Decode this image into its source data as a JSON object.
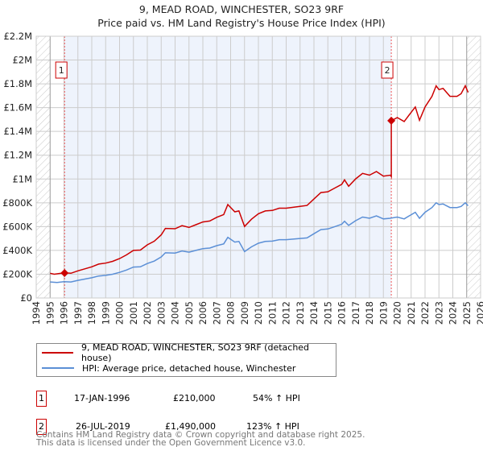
{
  "title": "9, MEAD ROAD, WINCHESTER, SO23 9RF",
  "subtitle": "Price paid vs. HM Land Registry's House Price Index (HPI)",
  "chart_data": {
    "type": "line",
    "title": "9, MEAD ROAD, WINCHESTER, SO23 9RF",
    "subtitle": "Price paid vs. HM Land Registry's House Price Index (HPI)",
    "xlim": [
      1994,
      2026
    ],
    "ylim": [
      0,
      2200000
    ],
    "y_ticks": [
      0,
      200000,
      400000,
      600000,
      800000,
      1000000,
      1200000,
      1400000,
      1600000,
      1800000,
      2000000,
      2200000
    ],
    "y_tick_labels": [
      "£0",
      "£200K",
      "£400K",
      "£600K",
      "£800K",
      "£1M",
      "£1.2M",
      "£1.4M",
      "£1.6M",
      "£1.8M",
      "£2M",
      "£2.2M"
    ],
    "x_tick_labels": [
      "1994",
      "1995",
      "1996",
      "1997",
      "1998",
      "1999",
      "2000",
      "2001",
      "2002",
      "2003",
      "2004",
      "2005",
      "2006",
      "2007",
      "2008",
      "2009",
      "2010",
      "2011",
      "2012",
      "2013",
      "2014",
      "2015",
      "2016",
      "2017",
      "2018",
      "2019",
      "2020",
      "2021",
      "2022",
      "2023",
      "2024",
      "2025",
      "2026"
    ],
    "grid": true,
    "series": [
      {
        "name": "9, MEAD ROAD, WINCHESTER, SO23 9RF (detached house)",
        "color": "#cc0000",
        "x": [
          1995,
          1995.3,
          1996,
          1996.5,
          1997,
          1998,
          1998.5,
          1999,
          1999.5,
          2000,
          2000.5,
          2001,
          2001.5,
          2002,
          2002.5,
          2003,
          2003.3,
          2004,
          2004.5,
          2005,
          2005.5,
          2006,
          2006.5,
          2007,
          2007.5,
          2007.8,
          2008.3,
          2008.6,
          2009,
          2009.5,
          2010,
          2010.5,
          2011,
          2011.5,
          2012,
          2012.5,
          2013,
          2013.5,
          2014,
          2014.5,
          2015,
          2015.5,
          2016,
          2016.2,
          2016.5,
          2017,
          2017.5,
          2018,
          2018.5,
          2019,
          2019.5,
          2019.57,
          2019.57,
          2020,
          2020.5,
          2021,
          2021.3,
          2021.6,
          2022,
          2022.5,
          2022.8,
          2023,
          2023.3,
          2023.8,
          2024.3,
          2024.6,
          2024.9,
          2025.1
        ],
        "y": [
          208000,
          200000,
          211000,
          208000,
          228000,
          262000,
          285000,
          293000,
          308000,
          331000,
          362000,
          400000,
          403000,
          447000,
          477000,
          531000,
          585000,
          582000,
          608000,
          593000,
          616000,
          639000,
          647000,
          678000,
          701000,
          785000,
          724000,
          732000,
          601000,
          662000,
          708000,
          732000,
          736000,
          755000,
          755000,
          762000,
          770000,
          778000,
          832000,
          886000,
          893000,
          924000,
          955000,
          993000,
          939000,
          1001000,
          1047000,
          1032000,
          1063000,
          1024000,
          1032000,
          1020000,
          1490000,
          1516000,
          1483000,
          1561000,
          1606000,
          1494000,
          1606000,
          1695000,
          1784000,
          1751000,
          1762000,
          1695000,
          1695000,
          1717000,
          1784000,
          1728000
        ]
      },
      {
        "name": "HPI: Average price, detached house, Winchester",
        "color": "#5b8fd6",
        "x": [
          1995,
          1995.5,
          1996,
          1996.5,
          1997,
          1998,
          1998.5,
          1999,
          1999.5,
          2000,
          2000.5,
          2001,
          2001.5,
          2002,
          2002.5,
          2003,
          2003.3,
          2004,
          2004.5,
          2005,
          2005.5,
          2006,
          2006.5,
          2007,
          2007.5,
          2007.8,
          2008.3,
          2008.6,
          2009,
          2009.5,
          2010,
          2010.5,
          2011,
          2011.5,
          2012,
          2012.5,
          2013,
          2013.5,
          2014,
          2014.5,
          2015,
          2015.5,
          2016,
          2016.2,
          2016.5,
          2017,
          2017.5,
          2018,
          2018.5,
          2019,
          2019.5,
          2020,
          2020.5,
          2021,
          2021.3,
          2021.6,
          2022,
          2022.5,
          2022.8,
          2023,
          2023.3,
          2023.8,
          2024.3,
          2024.6,
          2024.9,
          2025.1
        ],
        "y": [
          135000,
          130000,
          137000,
          135000,
          148000,
          170000,
          185000,
          190000,
          200000,
          215000,
          235000,
          260000,
          262000,
          290000,
          310000,
          345000,
          380000,
          378000,
          395000,
          385000,
          400000,
          415000,
          420000,
          440000,
          455000,
          510000,
          470000,
          475000,
          390000,
          430000,
          460000,
          475000,
          478000,
          490000,
          490000,
          495000,
          500000,
          505000,
          540000,
          575000,
          580000,
          600000,
          620000,
          645000,
          610000,
          650000,
          680000,
          670000,
          690000,
          665000,
          670000,
          680000,
          665000,
          700000,
          720000,
          670000,
          720000,
          760000,
          800000,
          785000,
          790000,
          760000,
          760000,
          770000,
          800000,
          775000
        ]
      }
    ],
    "sales": [
      {
        "label": "1",
        "x": 1996.04,
        "y": 210000,
        "date": "17-JAN-1996",
        "price": "£210,000",
        "hpi": "54% ↑ HPI"
      },
      {
        "label": "2",
        "x": 2019.57,
        "y": 1490000,
        "date": "26-JUL-2019",
        "price": "£1,490,000",
        "hpi": "123% ↑ HPI"
      }
    ]
  },
  "legend": {
    "red": "9, MEAD ROAD, WINCHESTER, SO23 9RF (detached house)",
    "blue": "HPI: Average price, detached house, Winchester"
  },
  "footer": {
    "line1": "Contains HM Land Registry data © Crown copyright and database right 2025.",
    "line2": "This data is licensed under the Open Government Licence v3.0."
  }
}
